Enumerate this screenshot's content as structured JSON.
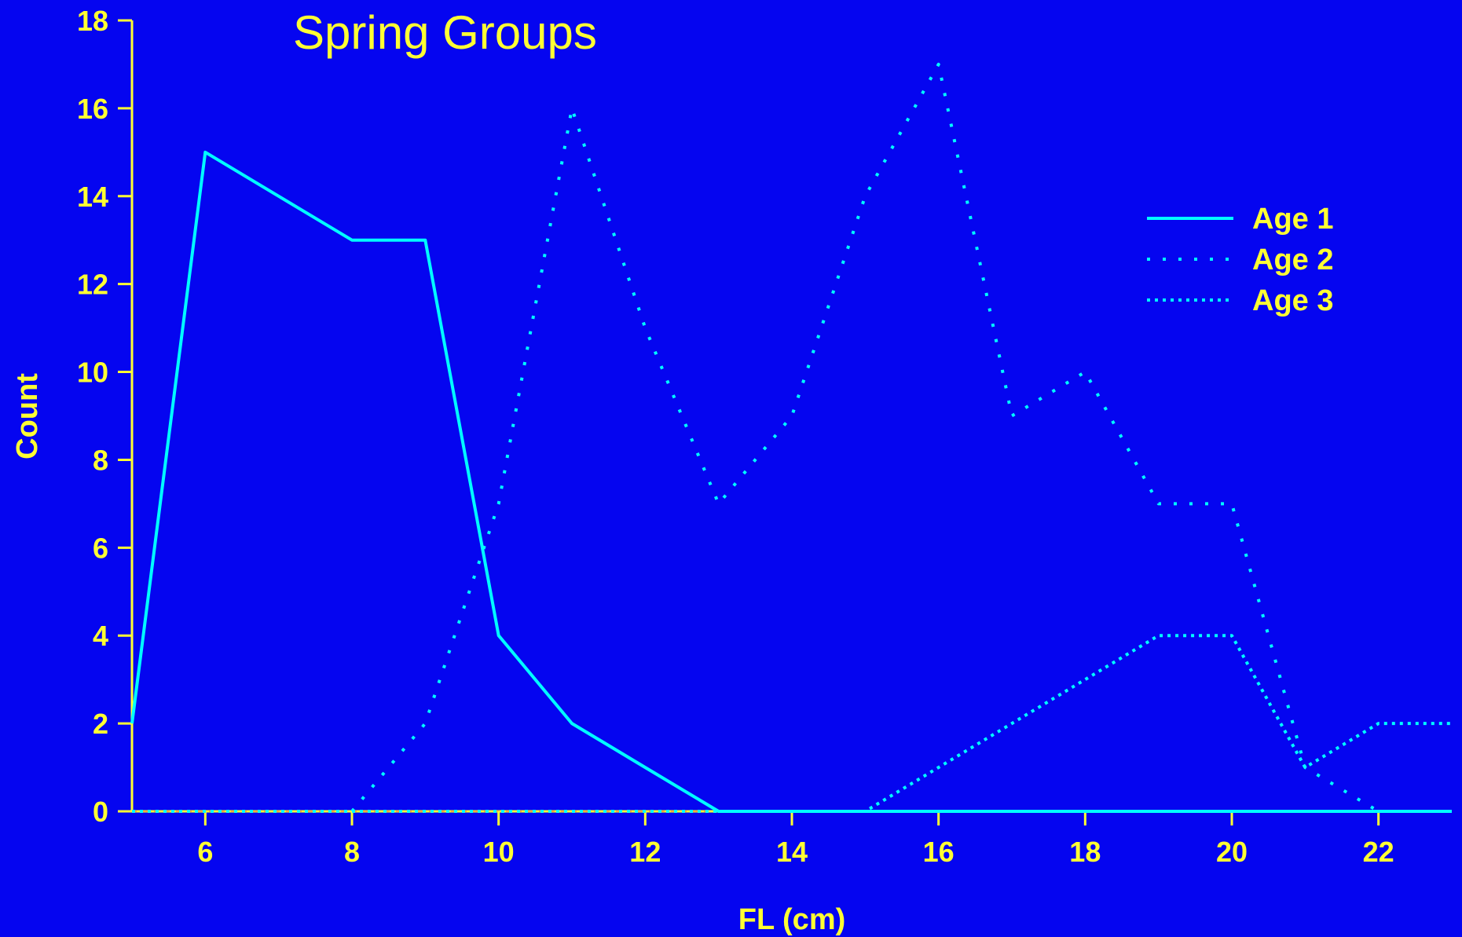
{
  "colors": {
    "background": "#0505f0",
    "axis": "#ffff33",
    "text": "#ffff33",
    "series": "#00ffff",
    "baseline_dash": "#ff9933"
  },
  "chart_data": {
    "type": "line",
    "title": "Spring Groups",
    "xlabel": "FL (cm)",
    "ylabel": "Count",
    "xlim": [
      5,
      23
    ],
    "ylim": [
      0,
      18
    ],
    "xticks": [
      6,
      8,
      10,
      12,
      14,
      16,
      18,
      20,
      22
    ],
    "yticks": [
      0,
      2,
      4,
      6,
      8,
      10,
      12,
      14,
      16,
      18
    ],
    "grid": false,
    "legend_position": "top-right",
    "series": [
      {
        "name": "Age 1",
        "style": "solid",
        "x": [
          5,
          6,
          7,
          8,
          9,
          10,
          11,
          12,
          13,
          14,
          15,
          16,
          17,
          18,
          19,
          20,
          21,
          22,
          23
        ],
        "y": [
          2,
          15,
          14,
          13,
          13,
          4,
          2,
          1,
          0,
          0,
          0,
          0,
          0,
          0,
          0,
          0,
          0,
          0,
          0
        ]
      },
      {
        "name": "Age 2",
        "style": "sparse-dotted",
        "x": [
          5,
          6,
          7,
          8,
          9,
          10,
          11,
          12,
          13,
          14,
          15,
          16,
          17,
          18,
          19,
          20,
          21,
          22,
          23
        ],
        "y": [
          0,
          0,
          0,
          0,
          2,
          7,
          16,
          11,
          7,
          9,
          14,
          17,
          9,
          10,
          7,
          7,
          1,
          0,
          0
        ]
      },
      {
        "name": "Age 3",
        "style": "dense-dotted",
        "x": [
          5,
          6,
          7,
          8,
          9,
          10,
          11,
          12,
          13,
          14,
          15,
          16,
          17,
          18,
          19,
          20,
          21,
          22,
          23
        ],
        "y": [
          0,
          0,
          0,
          0,
          0,
          0,
          0,
          0,
          0,
          0,
          0,
          1,
          2,
          3,
          4,
          4,
          1,
          2,
          2
        ]
      }
    ]
  }
}
